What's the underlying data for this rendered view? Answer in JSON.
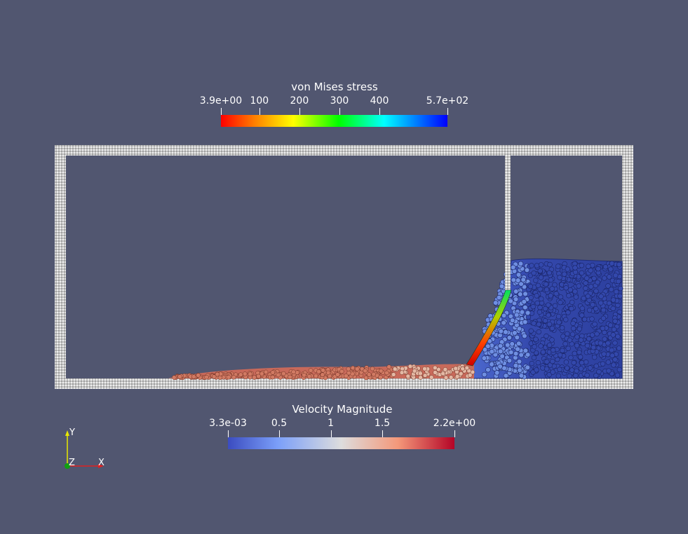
{
  "stress_legend": {
    "title": "von Mises stress",
    "tick_labels": [
      "3.9e+00",
      "100",
      "200",
      "300",
      "400",
      "5.7e+02"
    ],
    "tick_values": [
      3.9,
      100,
      200,
      300,
      400,
      570
    ],
    "range": [
      3.9,
      570
    ],
    "colormap": [
      "#ff0000",
      "#ff8000",
      "#ffff00",
      "#00ff00",
      "#00ffff",
      "#0000ff"
    ]
  },
  "velocity_legend": {
    "title": "Velocity Magnitude",
    "tick_labels": [
      "3.3e-03",
      "0.5",
      "1",
      "1.5",
      "2.2e+00"
    ],
    "tick_values": [
      0.0033,
      0.5,
      1.0,
      1.5,
      2.2
    ],
    "range": [
      0.0033,
      2.2
    ],
    "colormap": [
      "#3b4cc0",
      "#7b9ff9",
      "#dddddd",
      "#f4987a",
      "#b40426"
    ]
  },
  "orientation_axes": {
    "y": "Y",
    "z": "Z",
    "x": "X"
  },
  "colors": {
    "background": "#515670",
    "wall_particles": "#d8d8d8",
    "fluid_still": "#3a4fb0",
    "fluid_fast": "#c9654f"
  }
}
